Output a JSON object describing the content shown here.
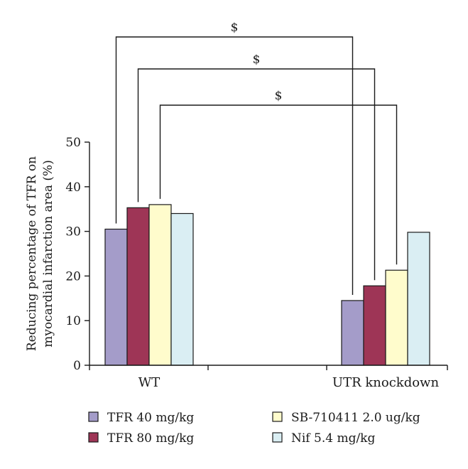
{
  "chart_data": {
    "type": "bar",
    "title": "",
    "xlabel": "",
    "ylabel_lines": [
      "Reducing percentage of TFR on",
      "myocardial infarction area (%)"
    ],
    "ylim": [
      0,
      50
    ],
    "yticks": [
      0,
      10,
      20,
      30,
      40,
      50
    ],
    "categories": [
      "WT",
      "UTR knockdown"
    ],
    "series": [
      {
        "name": "TFR 40 mg/kg",
        "color": "#a49cc9",
        "values": [
          30.5,
          14.5
        ]
      },
      {
        "name": "TFR 80 mg/kg",
        "color": "#9e3556",
        "values": [
          35.3,
          17.8
        ]
      },
      {
        "name": "SB-710411 2.0 ug/kg",
        "color": "#fffccc",
        "values": [
          36.0,
          21.3
        ]
      },
      {
        "name": "Nif 5.4 mg/kg",
        "color": "#daeef3",
        "values": [
          34.0,
          29.8
        ]
      }
    ],
    "annotations": [
      {
        "series_index": 0,
        "label": "$"
      },
      {
        "series_index": 1,
        "label": "$"
      },
      {
        "series_index": 2,
        "label": "$"
      }
    ],
    "legend_placement": "bottom",
    "grid": false
  }
}
